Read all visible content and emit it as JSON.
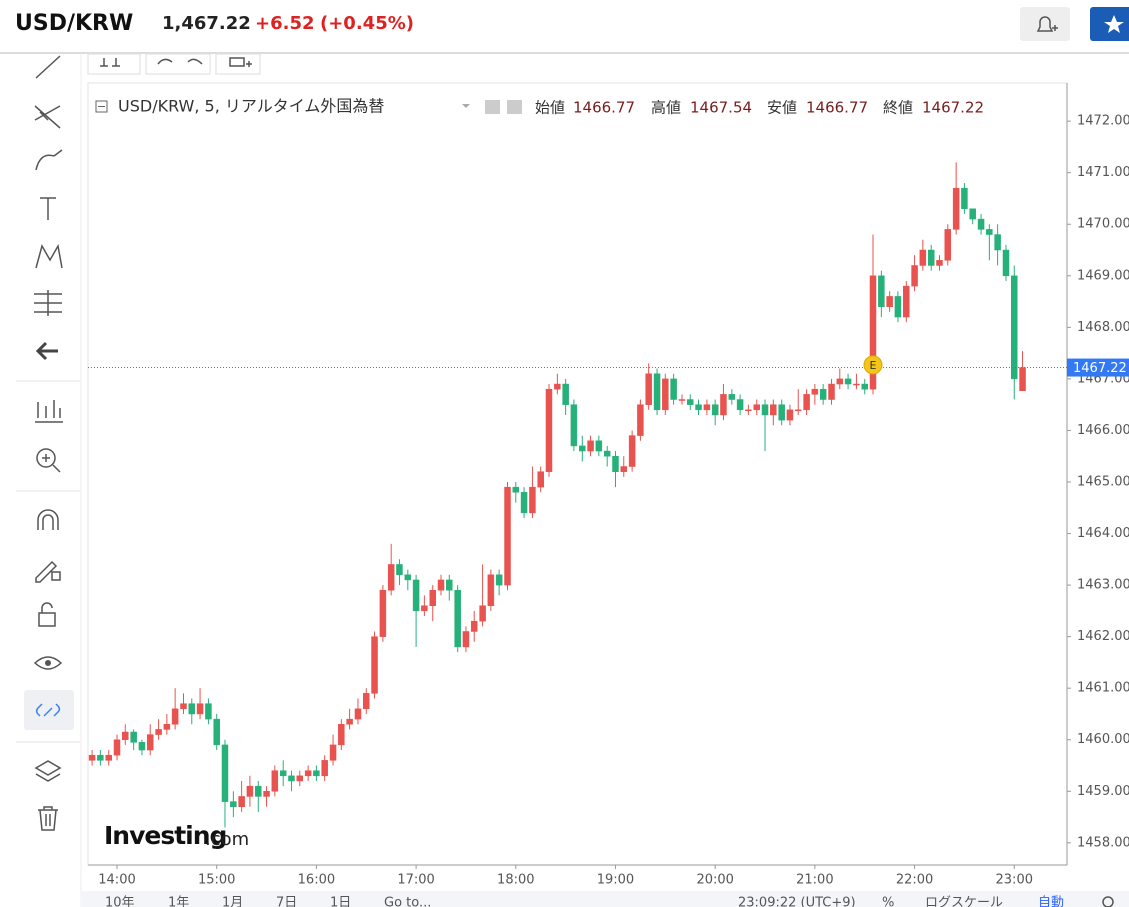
{
  "header": {
    "symbol": "USD/KRW",
    "price": "1,467.22",
    "change": "+6.52",
    "change_pct": "(+0.45%)"
  },
  "chart_data": {
    "type": "candlestick",
    "legend": {
      "title": "USD/KRW, 5, リアルタイム外国為替",
      "open_label": "始値",
      "high_label": "高値",
      "low_label": "安値",
      "close_label": "終値"
    },
    "up_color": "#e8524f",
    "down_color": "#26b07a",
    "price_line_color": "#3179f5",
    "event_marker": "E",
    "logo": {
      "name": "Investing",
      "suffix": ".com"
    },
    "log_scale": false,
    "grid": false,
    "x": [
      13.75,
      13.833,
      13.917,
      14,
      14.083,
      14.167,
      14.25,
      14.333,
      14.417,
      14.5,
      14.583,
      14.667,
      14.75,
      14.833,
      14.917,
      15,
      15.083,
      15.167,
      15.25,
      15.333,
      15.417,
      15.5,
      15.583,
      15.667,
      15.75,
      15.833,
      15.917,
      16,
      16.083,
      16.167,
      16.25,
      16.333,
      16.417,
      16.5,
      16.583,
      16.667,
      16.75,
      16.833,
      16.917,
      17,
      17.083,
      17.167,
      17.25,
      17.333,
      17.417,
      17.5,
      17.583,
      17.667,
      17.75,
      17.833,
      17.917,
      18,
      18.083,
      18.167,
      18.25,
      18.333,
      18.417,
      18.5,
      18.583,
      18.667,
      18.75,
      18.833,
      18.917,
      19,
      19.083,
      19.167,
      19.25,
      19.333,
      19.417,
      19.5,
      19.583,
      19.667,
      19.75,
      19.833,
      19.917,
      20,
      20.083,
      20.167,
      20.25,
      20.333,
      20.417,
      20.5,
      20.583,
      20.667,
      20.75,
      20.833,
      20.917,
      21,
      21.083,
      21.167,
      21.25,
      21.333,
      21.417,
      21.5,
      21.583,
      21.667,
      21.75,
      21.833,
      21.917,
      22,
      22.083,
      22.167,
      22.25,
      22.333,
      22.417,
      22.5,
      22.583,
      22.667,
      22.75,
      22.833,
      22.917,
      23,
      23.083
    ],
    "open": [
      1459.6,
      1459.7,
      1459.6,
      1459.7,
      1460.0,
      1460.15,
      1459.95,
      1459.8,
      1460.1,
      1460.2,
      1460.3,
      1460.6,
      1460.7,
      1460.5,
      1460.7,
      1460.4,
      1459.9,
      1458.8,
      1458.7,
      1458.9,
      1459.1,
      1458.9,
      1459.0,
      1459.4,
      1459.3,
      1459.2,
      1459.3,
      1459.4,
      1459.3,
      1459.6,
      1459.9,
      1460.3,
      1460.4,
      1460.6,
      1460.9,
      1462.0,
      1462.9,
      1463.4,
      1463.2,
      1463.1,
      1462.5,
      1462.6,
      1462.9,
      1463.1,
      1462.9,
      1461.8,
      1462.1,
      1462.3,
      1462.6,
      1463.2,
      1463.0,
      1464.9,
      1464.8,
      1464.4,
      1464.9,
      1465.2,
      1466.8,
      1466.9,
      1466.5,
      1465.7,
      1465.6,
      1465.8,
      1465.6,
      1465.5,
      1465.2,
      1465.3,
      1465.9,
      1466.5,
      1467.1,
      1466.4,
      1467.0,
      1466.6,
      1466.6,
      1466.5,
      1466.4,
      1466.5,
      1466.3,
      1466.7,
      1466.6,
      1466.4,
      1466.4,
      1466.5,
      1466.3,
      1466.5,
      1466.2,
      1466.4,
      1466.4,
      1466.7,
      1466.8,
      1466.6,
      1466.9,
      1467.0,
      1466.9,
      1466.9,
      1466.8,
      1469.0,
      1468.4,
      1468.6,
      1468.2,
      1468.8,
      1469.2,
      1469.5,
      1469.2,
      1469.3,
      1469.9,
      1470.7,
      1470.3,
      1470.1,
      1469.9,
      1469.8,
      1469.5,
      1469.0,
      1466.77
    ],
    "high": [
      1459.8,
      1459.8,
      1459.8,
      1460.1,
      1460.3,
      1460.2,
      1460.0,
      1460.3,
      1460.4,
      1460.5,
      1461.0,
      1460.9,
      1460.8,
      1461.0,
      1460.8,
      1460.5,
      1460.0,
      1459.0,
      1459.2,
      1459.3,
      1459.2,
      1459.1,
      1459.5,
      1459.6,
      1459.4,
      1459.4,
      1459.5,
      1459.5,
      1459.7,
      1460.1,
      1460.4,
      1460.6,
      1460.8,
      1461.0,
      1462.1,
      1463.0,
      1463.8,
      1463.5,
      1463.3,
      1463.2,
      1462.8,
      1463.0,
      1463.2,
      1463.2,
      1463.0,
      1462.2,
      1462.5,
      1463.4,
      1463.3,
      1463.3,
      1465.0,
      1465.0,
      1464.9,
      1465.3,
      1465.3,
      1466.9,
      1467.1,
      1467.0,
      1466.6,
      1465.9,
      1465.9,
      1465.9,
      1465.7,
      1465.6,
      1465.5,
      1466.0,
      1466.6,
      1467.3,
      1467.2,
      1467.1,
      1467.1,
      1466.7,
      1466.7,
      1466.6,
      1466.6,
      1466.6,
      1466.9,
      1466.8,
      1466.7,
      1466.5,
      1466.6,
      1466.6,
      1466.6,
      1466.6,
      1466.5,
      1466.8,
      1466.8,
      1466.9,
      1466.9,
      1467.0,
      1467.2,
      1467.1,
      1467.1,
      1467.0,
      1469.8,
      1469.1,
      1468.7,
      1468.7,
      1468.9,
      1469.4,
      1469.7,
      1469.6,
      1469.4,
      1470.0,
      1471.2,
      1470.8,
      1470.3,
      1470.2,
      1470.0,
      1470.0,
      1469.6,
      1469.2,
      1467.54
    ],
    "low": [
      1459.5,
      1459.5,
      1459.5,
      1459.6,
      1459.9,
      1459.8,
      1459.7,
      1459.7,
      1460.0,
      1460.1,
      1460.2,
      1460.5,
      1460.3,
      1460.4,
      1460.3,
      1459.8,
      1458.3,
      1458.5,
      1458.6,
      1458.7,
      1458.6,
      1458.7,
      1458.9,
      1459.1,
      1459.0,
      1459.1,
      1459.2,
      1459.2,
      1459.2,
      1459.5,
      1459.8,
      1460.2,
      1460.3,
      1460.5,
      1460.8,
      1461.9,
      1462.8,
      1463.0,
      1462.9,
      1461.8,
      1462.4,
      1462.3,
      1462.8,
      1462.7,
      1461.7,
      1461.7,
      1461.9,
      1462.2,
      1462.5,
      1462.8,
      1462.9,
      1464.6,
      1464.3,
      1464.3,
      1464.8,
      1465.1,
      1466.7,
      1466.3,
      1465.6,
      1465.4,
      1465.5,
      1465.5,
      1465.3,
      1464.9,
      1465.1,
      1465.2,
      1465.8,
      1466.4,
      1466.3,
      1466.3,
      1466.5,
      1466.5,
      1466.4,
      1466.3,
      1466.3,
      1466.1,
      1466.2,
      1466.5,
      1466.3,
      1466.3,
      1466.3,
      1465.6,
      1466.1,
      1466.1,
      1466.1,
      1466.3,
      1466.3,
      1466.5,
      1466.5,
      1466.5,
      1466.8,
      1466.8,
      1466.8,
      1466.7,
      1466.7,
      1468.2,
      1468.3,
      1468.1,
      1468.1,
      1468.7,
      1469.1,
      1469.1,
      1469.1,
      1469.2,
      1469.8,
      1470.2,
      1470.0,
      1469.8,
      1469.3,
      1469.2,
      1468.9,
      1466.6,
      1466.77
    ],
    "close": [
      1459.7,
      1459.6,
      1459.7,
      1460.0,
      1460.15,
      1459.95,
      1459.8,
      1460.1,
      1460.2,
      1460.3,
      1460.6,
      1460.7,
      1460.5,
      1460.7,
      1460.4,
      1459.9,
      1458.8,
      1458.7,
      1458.9,
      1459.1,
      1458.9,
      1459.0,
      1459.4,
      1459.3,
      1459.2,
      1459.3,
      1459.4,
      1459.3,
      1459.6,
      1459.9,
      1460.3,
      1460.4,
      1460.6,
      1460.9,
      1462.0,
      1462.9,
      1463.4,
      1463.2,
      1463.1,
      1462.5,
      1462.6,
      1462.9,
      1463.1,
      1462.9,
      1461.8,
      1462.1,
      1462.3,
      1462.6,
      1463.2,
      1463.0,
      1464.9,
      1464.8,
      1464.4,
      1464.9,
      1465.2,
      1466.8,
      1466.9,
      1466.5,
      1465.7,
      1465.6,
      1465.8,
      1465.6,
      1465.5,
      1465.2,
      1465.3,
      1465.9,
      1466.5,
      1467.1,
      1466.4,
      1467.0,
      1466.6,
      1466.6,
      1466.5,
      1466.4,
      1466.5,
      1466.3,
      1466.7,
      1466.6,
      1466.4,
      1466.4,
      1466.5,
      1466.3,
      1466.5,
      1466.2,
      1466.4,
      1466.4,
      1466.7,
      1466.8,
      1466.6,
      1466.9,
      1467.0,
      1466.9,
      1466.9,
      1466.8,
      1469.0,
      1468.4,
      1468.6,
      1468.2,
      1468.8,
      1469.2,
      1469.5,
      1469.2,
      1469.3,
      1469.9,
      1470.7,
      1470.3,
      1470.1,
      1469.9,
      1469.8,
      1469.5,
      1469.0,
      1467.0,
      1467.22
    ],
    "xlim": [
      13.709,
      23.529
    ],
    "xticks": [
      {
        "value": 14,
        "label": "14:00"
      },
      {
        "value": 15,
        "label": "15:00"
      },
      {
        "value": 16,
        "label": "16:00"
      },
      {
        "value": 17,
        "label": "17:00"
      },
      {
        "value": 18,
        "label": "18:00"
      },
      {
        "value": 19,
        "label": "19:00"
      },
      {
        "value": 20,
        "label": "20:00"
      },
      {
        "value": 21,
        "label": "21:00"
      },
      {
        "value": 22,
        "label": "22:00"
      },
      {
        "value": 23,
        "label": "23:00"
      }
    ],
    "ylim": [
      1457.57,
      1472.74
    ],
    "yticks": [
      {
        "value": 1458,
        "label": "1458.00"
      },
      {
        "value": 1459,
        "label": "1459.00"
      },
      {
        "value": 1460,
        "label": "1460.00"
      },
      {
        "value": 1461,
        "label": "1461.00"
      },
      {
        "value": 1462,
        "label": "1462.00"
      },
      {
        "value": 1463,
        "label": "1463.00"
      },
      {
        "value": 1464,
        "label": "1464.00"
      },
      {
        "value": 1465,
        "label": "1465.00"
      },
      {
        "value": 1466,
        "label": "1466.00"
      },
      {
        "value": 1467,
        "label": "1467.00"
      },
      {
        "value": 1468,
        "label": "1468.00"
      },
      {
        "value": 1469,
        "label": "1469.00"
      },
      {
        "value": 1470,
        "label": "1470.00"
      },
      {
        "value": 1471,
        "label": "1471.00"
      },
      {
        "value": 1472,
        "label": "1472.00"
      }
    ]
  },
  "bottom_bar": {
    "ranges": [
      "10年",
      "1年",
      "1月",
      "7日",
      "1日"
    ],
    "goto": "Go to...",
    "clock": "23:09:22 (UTC+9)",
    "percent": "%",
    "log": "ログスケール",
    "auto": "自動"
  }
}
